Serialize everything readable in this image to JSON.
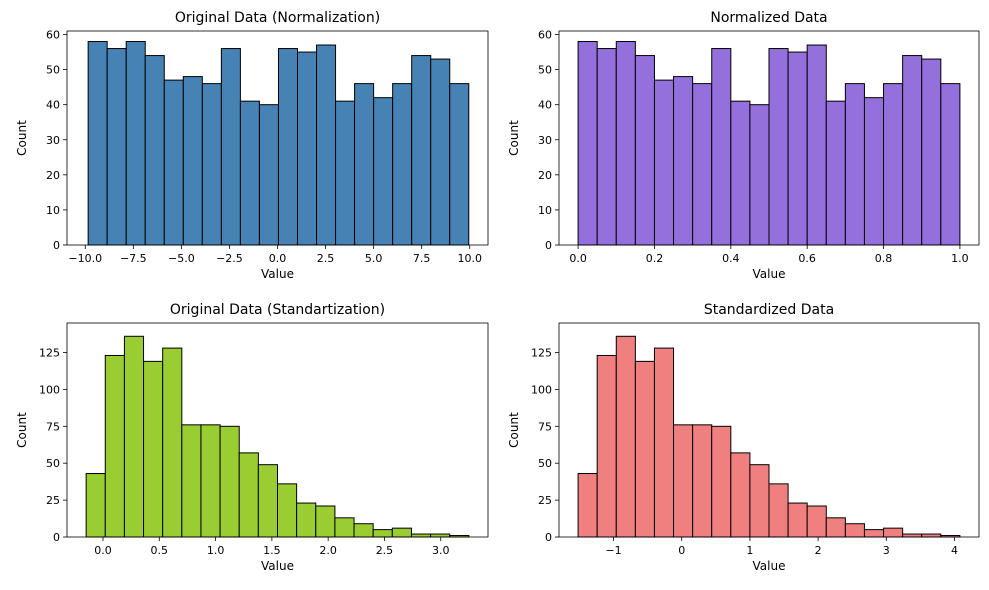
{
  "chart_data": [
    {
      "type": "bar",
      "title": "Original Data (Normalization)",
      "xlabel": "Value",
      "ylabel": "Count",
      "color": "#4682b4",
      "bin_start": -9.85,
      "bin_width": 0.99,
      "counts": [
        58,
        56,
        58,
        54,
        47,
        48,
        46,
        56,
        41,
        40,
        56,
        55,
        57,
        41,
        46,
        42,
        46,
        54,
        53,
        46
      ],
      "xlim": [
        -10.95,
        10.95
      ],
      "ylim": [
        0,
        61
      ],
      "xticks": [
        -10.0,
        -7.5,
        -5.0,
        -2.5,
        0.0,
        2.5,
        5.0,
        7.5,
        10.0
      ],
      "xtick_labels": [
        "−10.0",
        "−7.5",
        "−5.0",
        "−2.5",
        "0.0",
        "2.5",
        "5.0",
        "7.5",
        "10.0"
      ],
      "yticks": [
        0,
        10,
        20,
        30,
        40,
        50,
        60
      ]
    },
    {
      "type": "bar",
      "title": "Normalized Data",
      "xlabel": "Value",
      "ylabel": "Count",
      "color": "#9370db",
      "bin_start": 0.0,
      "bin_width": 0.05,
      "counts": [
        58,
        56,
        58,
        54,
        47,
        48,
        46,
        56,
        41,
        40,
        56,
        55,
        57,
        41,
        46,
        42,
        46,
        54,
        53,
        46
      ],
      "xlim": [
        -0.05,
        1.05
      ],
      "ylim": [
        0,
        61
      ],
      "xticks": [
        0.0,
        0.2,
        0.4,
        0.6,
        0.8,
        1.0
      ],
      "xtick_labels": [
        "0.0",
        "0.2",
        "0.4",
        "0.6",
        "0.8",
        "1.0"
      ],
      "yticks": [
        0,
        10,
        20,
        30,
        40,
        50,
        60
      ]
    },
    {
      "type": "bar",
      "title": "Original Data (Standartization)",
      "xlabel": "Value",
      "ylabel": "Count",
      "color": "#9acd32",
      "bin_start": -0.15,
      "bin_width": 0.17,
      "counts": [
        43,
        123,
        136,
        119,
        128,
        76,
        76,
        75,
        57,
        49,
        36,
        23,
        21,
        13,
        9,
        5,
        6,
        2,
        2,
        1
      ],
      "xlim": [
        -0.32,
        3.42
      ],
      "ylim": [
        0,
        145
      ],
      "xticks": [
        0.0,
        0.5,
        1.0,
        1.5,
        2.0,
        2.5,
        3.0
      ],
      "xtick_labels": [
        "0.0",
        "0.5",
        "1.0",
        "1.5",
        "2.0",
        "2.5",
        "3.0"
      ],
      "yticks": [
        0,
        25,
        50,
        75,
        100,
        125
      ]
    },
    {
      "type": "bar",
      "title": "Standardized Data",
      "xlabel": "Value",
      "ylabel": "Count",
      "color": "#f08080",
      "bin_start": -1.52,
      "bin_width": 0.28,
      "counts": [
        43,
        123,
        136,
        119,
        128,
        76,
        76,
        75,
        57,
        49,
        36,
        23,
        21,
        13,
        9,
        5,
        6,
        2,
        2,
        1
      ],
      "xlim": [
        -1.8,
        4.36
      ],
      "ylim": [
        0,
        145
      ],
      "xticks": [
        -1,
        0,
        1,
        2,
        3,
        4
      ],
      "xtick_labels": [
        "−1",
        "0",
        "1",
        "2",
        "3",
        "4"
      ],
      "yticks": [
        0,
        25,
        50,
        75,
        100,
        125
      ]
    }
  ]
}
